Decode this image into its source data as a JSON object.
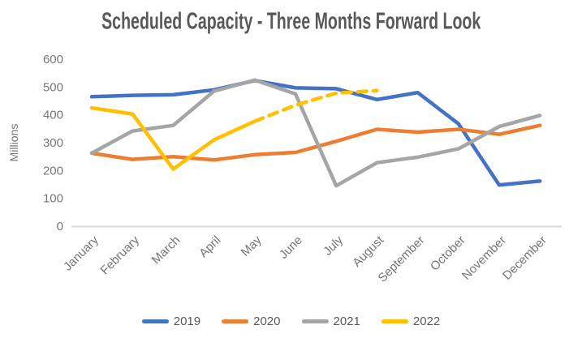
{
  "chart_data": {
    "type": "line",
    "title": "Scheduled Capacity - Three Months Forward Look",
    "ylabel": "Millions",
    "xlabel": "",
    "ylim": [
      0,
      600
    ],
    "yticks": [
      0,
      100,
      200,
      300,
      400,
      500,
      600
    ],
    "grid": false,
    "legend_position": "bottom",
    "axis_line_color": "#d9d9d9",
    "tick_text_color": "#757575",
    "title_color": "#595959",
    "categories": [
      "January",
      "February",
      "March",
      "April",
      "May",
      "June",
      "July",
      "August",
      "September",
      "October",
      "November",
      "December"
    ],
    "series": [
      {
        "name": "2019",
        "color": "#4472C4",
        "values": [
          465,
          470,
          472,
          490,
          523,
          497,
          494,
          455,
          480,
          368,
          148,
          162
        ]
      },
      {
        "name": "2020",
        "color": "#ED7D31",
        "values": [
          262,
          240,
          250,
          238,
          257,
          265,
          305,
          348,
          338,
          348,
          330,
          362
        ]
      },
      {
        "name": "2021",
        "color": "#A5A5A5",
        "values": [
          262,
          342,
          362,
          485,
          525,
          475,
          145,
          228,
          248,
          278,
          358,
          398
        ]
      },
      {
        "name": "2022",
        "color": "#FFC000",
        "values": [
          425,
          403,
          205,
          310,
          377,
          435,
          478,
          487,
          null,
          null,
          null,
          null
        ],
        "dash_from_index": 4,
        "dash_style": "forecast"
      }
    ]
  }
}
